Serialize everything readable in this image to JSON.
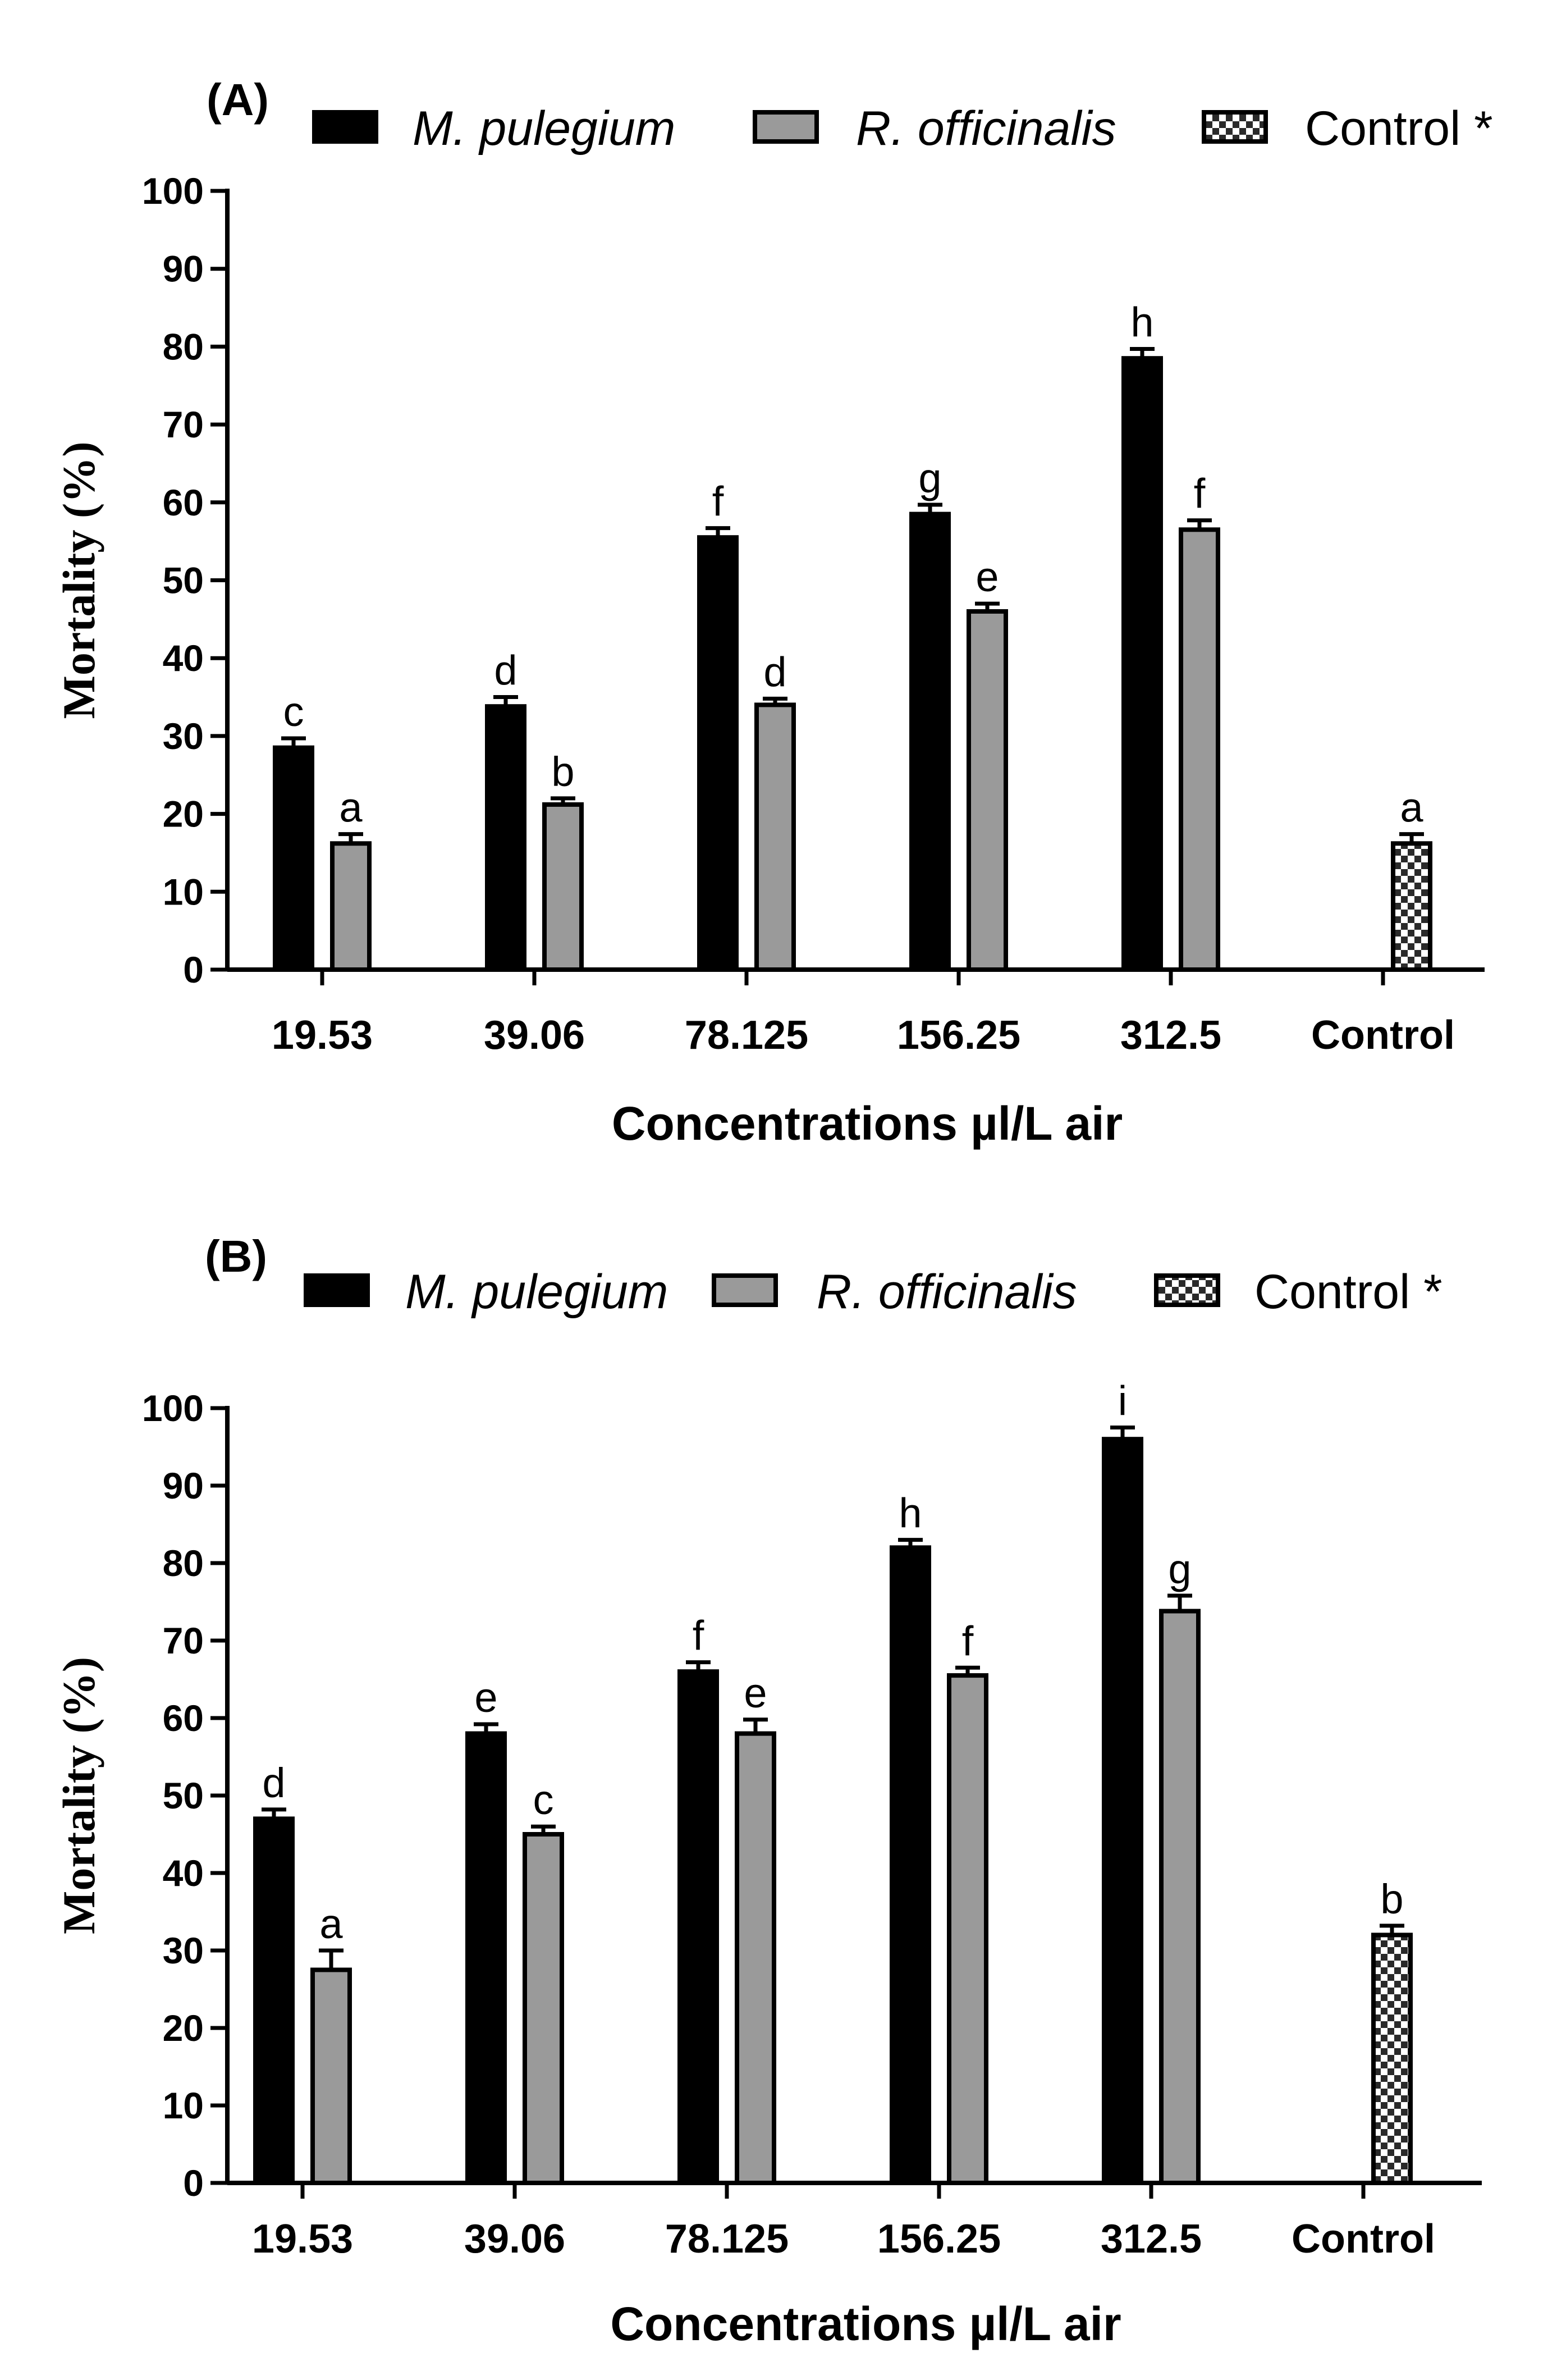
{
  "chart_data": [
    {
      "type": "bar",
      "panel_label": "(A)",
      "categories": [
        "19.53",
        "39.06",
        "78.125",
        "156.25",
        "312.5",
        "Control"
      ],
      "series": [
        {
          "name": "M. pulegium",
          "style": "solid-black",
          "values": [
            28.5,
            33.8,
            55.5,
            58.5,
            78.5,
            null
          ],
          "errors": [
            1.2,
            1.2,
            1.2,
            1.2,
            1.2,
            null
          ],
          "labels": [
            "c",
            "d",
            "f",
            "g",
            "h",
            null
          ]
        },
        {
          "name": "R. officinalis",
          "style": "solid-gray",
          "values": [
            16.2,
            21.2,
            34.0,
            46.0,
            56.5,
            null
          ],
          "errors": [
            1.2,
            0.8,
            0.8,
            1.0,
            1.2,
            null
          ],
          "labels": [
            "a",
            "b",
            "d",
            "e",
            "f",
            null
          ]
        },
        {
          "name": "Control *",
          "style": "checkered",
          "values": [
            null,
            null,
            null,
            null,
            null,
            16.2
          ],
          "errors": [
            null,
            null,
            null,
            null,
            null,
            1.2
          ],
          "labels": [
            null,
            null,
            null,
            null,
            null,
            "a"
          ]
        }
      ],
      "xlabel": "Concentrations µl/L air",
      "ylabel": "Mortality (%)",
      "ylim": [
        0,
        100
      ],
      "yticks": [
        0,
        10,
        20,
        30,
        40,
        50,
        60,
        70,
        80,
        90,
        100
      ],
      "legend": "top"
    },
    {
      "type": "bar",
      "panel_label": "(B)",
      "categories": [
        "19.53",
        "39.06",
        "78.125",
        "156.25",
        "312.5",
        "Control"
      ],
      "series": [
        {
          "name": "M. pulegium",
          "style": "solid-black",
          "values": [
            47.0,
            58.0,
            66.0,
            82.0,
            96.0,
            null
          ],
          "errors": [
            1.2,
            1.2,
            1.2,
            1.0,
            1.5,
            null
          ],
          "labels": [
            "d",
            "e",
            "f",
            "h",
            "i",
            null
          ]
        },
        {
          "name": "R. officinalis",
          "style": "solid-gray",
          "values": [
            27.5,
            45.0,
            58.0,
            65.5,
            73.8,
            null
          ],
          "errors": [
            2.5,
            1.0,
            1.8,
            1.0,
            2.0,
            null
          ],
          "labels": [
            "a",
            "c",
            "e",
            "f",
            "g",
            null
          ]
        },
        {
          "name": "Control *",
          "style": "checkered",
          "values": [
            null,
            null,
            null,
            null,
            null,
            32.0
          ],
          "errors": [
            null,
            null,
            null,
            null,
            null,
            1.2
          ],
          "labels": [
            null,
            null,
            null,
            null,
            null,
            "b"
          ]
        }
      ],
      "xlabel": "Concentrations µl/L air",
      "ylabel": "Mortality (%)",
      "ylim": [
        0,
        100
      ],
      "yticks": [
        0,
        10,
        20,
        30,
        40,
        50,
        60,
        70,
        80,
        90,
        100
      ],
      "legend": "top"
    }
  ]
}
